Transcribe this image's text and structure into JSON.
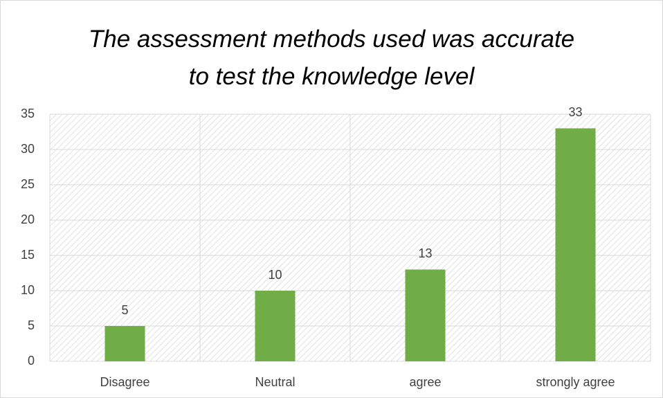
{
  "chart_data": {
    "type": "bar",
    "title": "The assessment methods used was accurate to test the knowledge level",
    "categories": [
      "Disagree",
      "Neutral",
      "agree",
      "strongly agree"
    ],
    "values": [
      5,
      10,
      13,
      33
    ],
    "color": "#70ad47",
    "ylim": [
      0,
      35
    ],
    "yticks": [
      0,
      5,
      10,
      15,
      20,
      25,
      30,
      35
    ],
    "grid": true,
    "data_labels": true
  }
}
